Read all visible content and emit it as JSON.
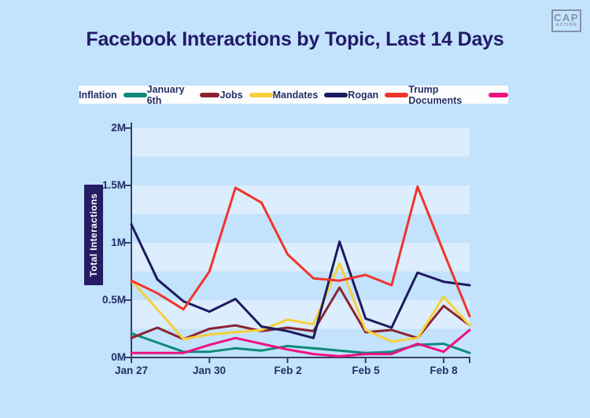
{
  "page": {
    "background": "#c3e2fc"
  },
  "logo": {
    "line1": "CAP",
    "line2": "ACTION",
    "color": "#8493ab"
  },
  "legend_strip_background": "#fdfdfe",
  "chart_data": {
    "type": "line",
    "title": "Facebook Interactions by Topic, Last 14 Days",
    "title_color": "#221a68",
    "ylabel": "Total Interactions",
    "units": "Facebook interactions, values in millions",
    "x": [
      "Jan 27",
      "Jan 28",
      "Jan 29",
      "Jan 30",
      "Jan 31",
      "Feb 1",
      "Feb 2",
      "Feb 3",
      "Feb 4",
      "Feb 5",
      "Feb 6",
      "Feb 7",
      "Feb 8",
      "Feb 9"
    ],
    "x_tick_labels": [
      "Jan 27",
      "Jan 30",
      "Feb 2",
      "Feb 5",
      "Feb 8"
    ],
    "x_tick_day_indices": [
      0,
      3,
      6,
      9,
      12
    ],
    "ylim_millions": [
      0,
      2
    ],
    "y_tick_values_millions": [
      0,
      0.5,
      1,
      1.5,
      2
    ],
    "y_tick_labels": [
      "2M",
      "1.5M",
      "1M",
      "0.5M",
      "0M"
    ],
    "grid": "alternating horizontal stripes every 0.25M",
    "stripe_color": "#dcedfd",
    "axis_color": "#3a4169",
    "legend_position": "top",
    "series": [
      {
        "name": "Inflation",
        "color": "#0f8a79",
        "values_millions": [
          0.21,
          0.13,
          0.05,
          0.05,
          0.08,
          0.06,
          0.1,
          0.08,
          0.06,
          0.04,
          0.05,
          0.11,
          0.12,
          0.04
        ]
      },
      {
        "name": "January 6th",
        "color": "#8b2432",
        "values_millions": [
          0.17,
          0.26,
          0.16,
          0.25,
          0.28,
          0.23,
          0.26,
          0.23,
          0.61,
          0.22,
          0.24,
          0.17,
          0.45,
          0.28
        ]
      },
      {
        "name": "Jobs",
        "color": "#f5d03c",
        "values_millions": [
          0.67,
          0.42,
          0.16,
          0.2,
          0.22,
          0.24,
          0.33,
          0.29,
          0.82,
          0.24,
          0.14,
          0.17,
          0.53,
          0.28
        ]
      },
      {
        "name": "Mandates",
        "color": "#1c1a5e",
        "values_millions": [
          1.16,
          0.68,
          0.49,
          0.4,
          0.51,
          0.27,
          0.23,
          0.17,
          1.01,
          0.34,
          0.26,
          0.74,
          0.66,
          0.63
        ]
      },
      {
        "name": "Rogan",
        "color": "#f0352b",
        "values_millions": [
          0.67,
          0.56,
          0.42,
          0.75,
          1.48,
          1.35,
          0.9,
          0.69,
          0.67,
          0.72,
          0.63,
          1.49,
          0.92,
          0.36
        ]
      },
      {
        "name": "Trump Documents",
        "color": "#ee1180",
        "values_millions": [
          0.04,
          0.04,
          0.04,
          0.11,
          0.17,
          0.12,
          0.07,
          0.03,
          0.01,
          0.03,
          0.03,
          0.12,
          0.05,
          0.24
        ]
      }
    ]
  }
}
